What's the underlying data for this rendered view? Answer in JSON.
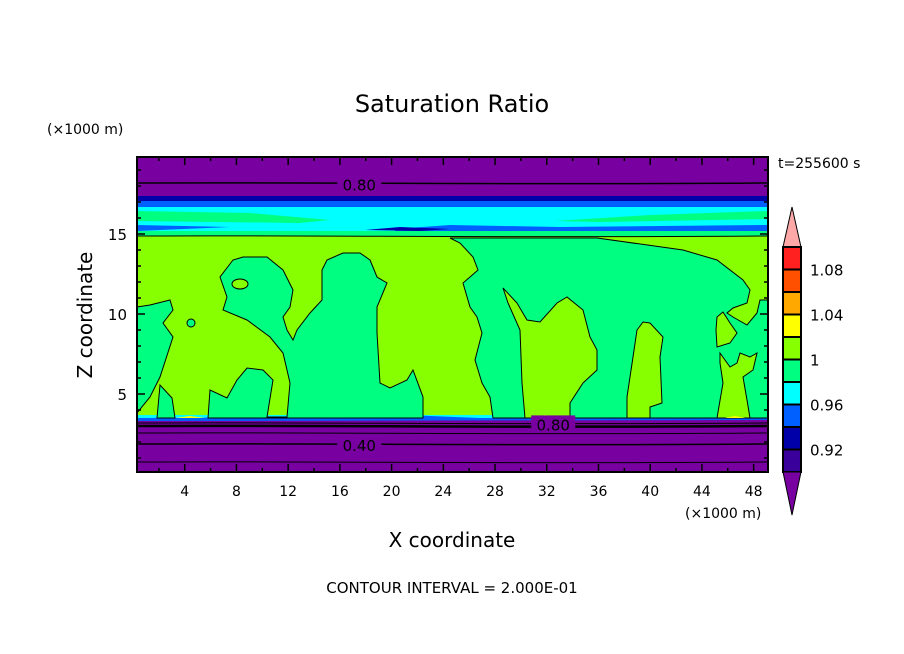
{
  "chart_data": {
    "type": "heatmap",
    "subtype": "filled-contour",
    "title": "Saturation Ratio",
    "xlabel": "X coordinate",
    "ylabel": "Z coordinate",
    "x_units": "(×1000 m)",
    "y_units": "(×1000 m)",
    "time_label": "t=255600 s",
    "footer": "CONTOUR INTERVAL = 2.000E-01",
    "xlim": [
      0.3,
      49.1
    ],
    "ylim": [
      0.1,
      19.8
    ],
    "x_ticks": [
      4,
      8,
      12,
      16,
      20,
      24,
      28,
      32,
      36,
      40,
      44,
      48
    ],
    "y_ticks": [
      5,
      10,
      15
    ],
    "contour_labels": [
      {
        "text": "0.80",
        "x": 17.5,
        "z": 18.1
      },
      {
        "text": "0.80",
        "x": 32.5,
        "z": 3.1
      },
      {
        "text": "0.40",
        "x": 17.5,
        "z": 1.8
      }
    ],
    "colorbar": {
      "levels": [
        0.9,
        0.92,
        0.94,
        0.96,
        0.98,
        1.0,
        1.02,
        1.04,
        1.06,
        1.08,
        1.1
      ],
      "colors": [
        "#3a009c",
        "#0000a8",
        "#0060ff",
        "#00ffff",
        "#00ff80",
        "#88ff00",
        "#ffff00",
        "#ffa800",
        "#ff5000",
        "#ff2020"
      ],
      "under_color": "#7800a0",
      "over_color": "#ffa8a8",
      "tick_labels": [
        {
          "value": 1.08,
          "text": "1.08"
        },
        {
          "value": 1.04,
          "text": "1.04"
        },
        {
          "value": 1.0,
          "text": "1"
        },
        {
          "value": 0.96,
          "text": "0.96"
        },
        {
          "value": 0.92,
          "text": "0.92"
        }
      ]
    }
  }
}
